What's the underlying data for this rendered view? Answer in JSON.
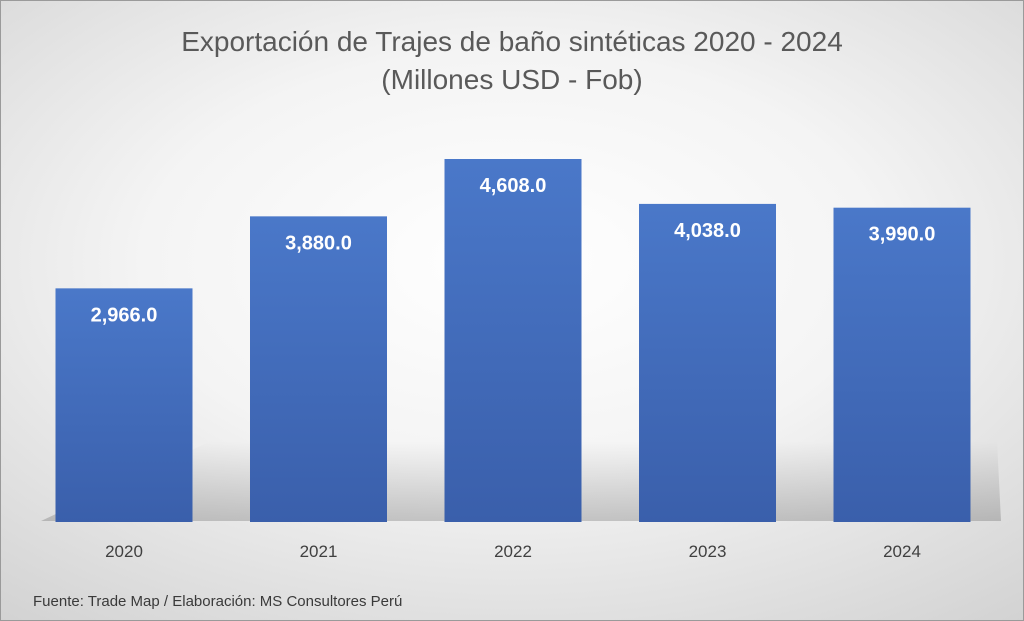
{
  "chart_data": {
    "type": "bar",
    "title": "Exportación de Trajes de baño sintéticas 2020 - 2024",
    "subtitle": "(Millones USD - Fob)",
    "categories": [
      "2020",
      "2021",
      "2022",
      "2023",
      "2024"
    ],
    "values": [
      2966.0,
      3880.0,
      4608.0,
      4038.0,
      3990.0
    ],
    "data_labels": [
      "2,966.0",
      "3,880.0",
      "4,608.0",
      "4,038.0",
      "3,990.0"
    ],
    "xlabel": "",
    "ylabel": "",
    "ylim": [
      0,
      4608.0
    ],
    "grid": false,
    "legend": "none",
    "bar_color": "#4472C4"
  },
  "footer": {
    "source": "Fuente: Trade Map / Elaboración: MS Consultores Perú"
  }
}
